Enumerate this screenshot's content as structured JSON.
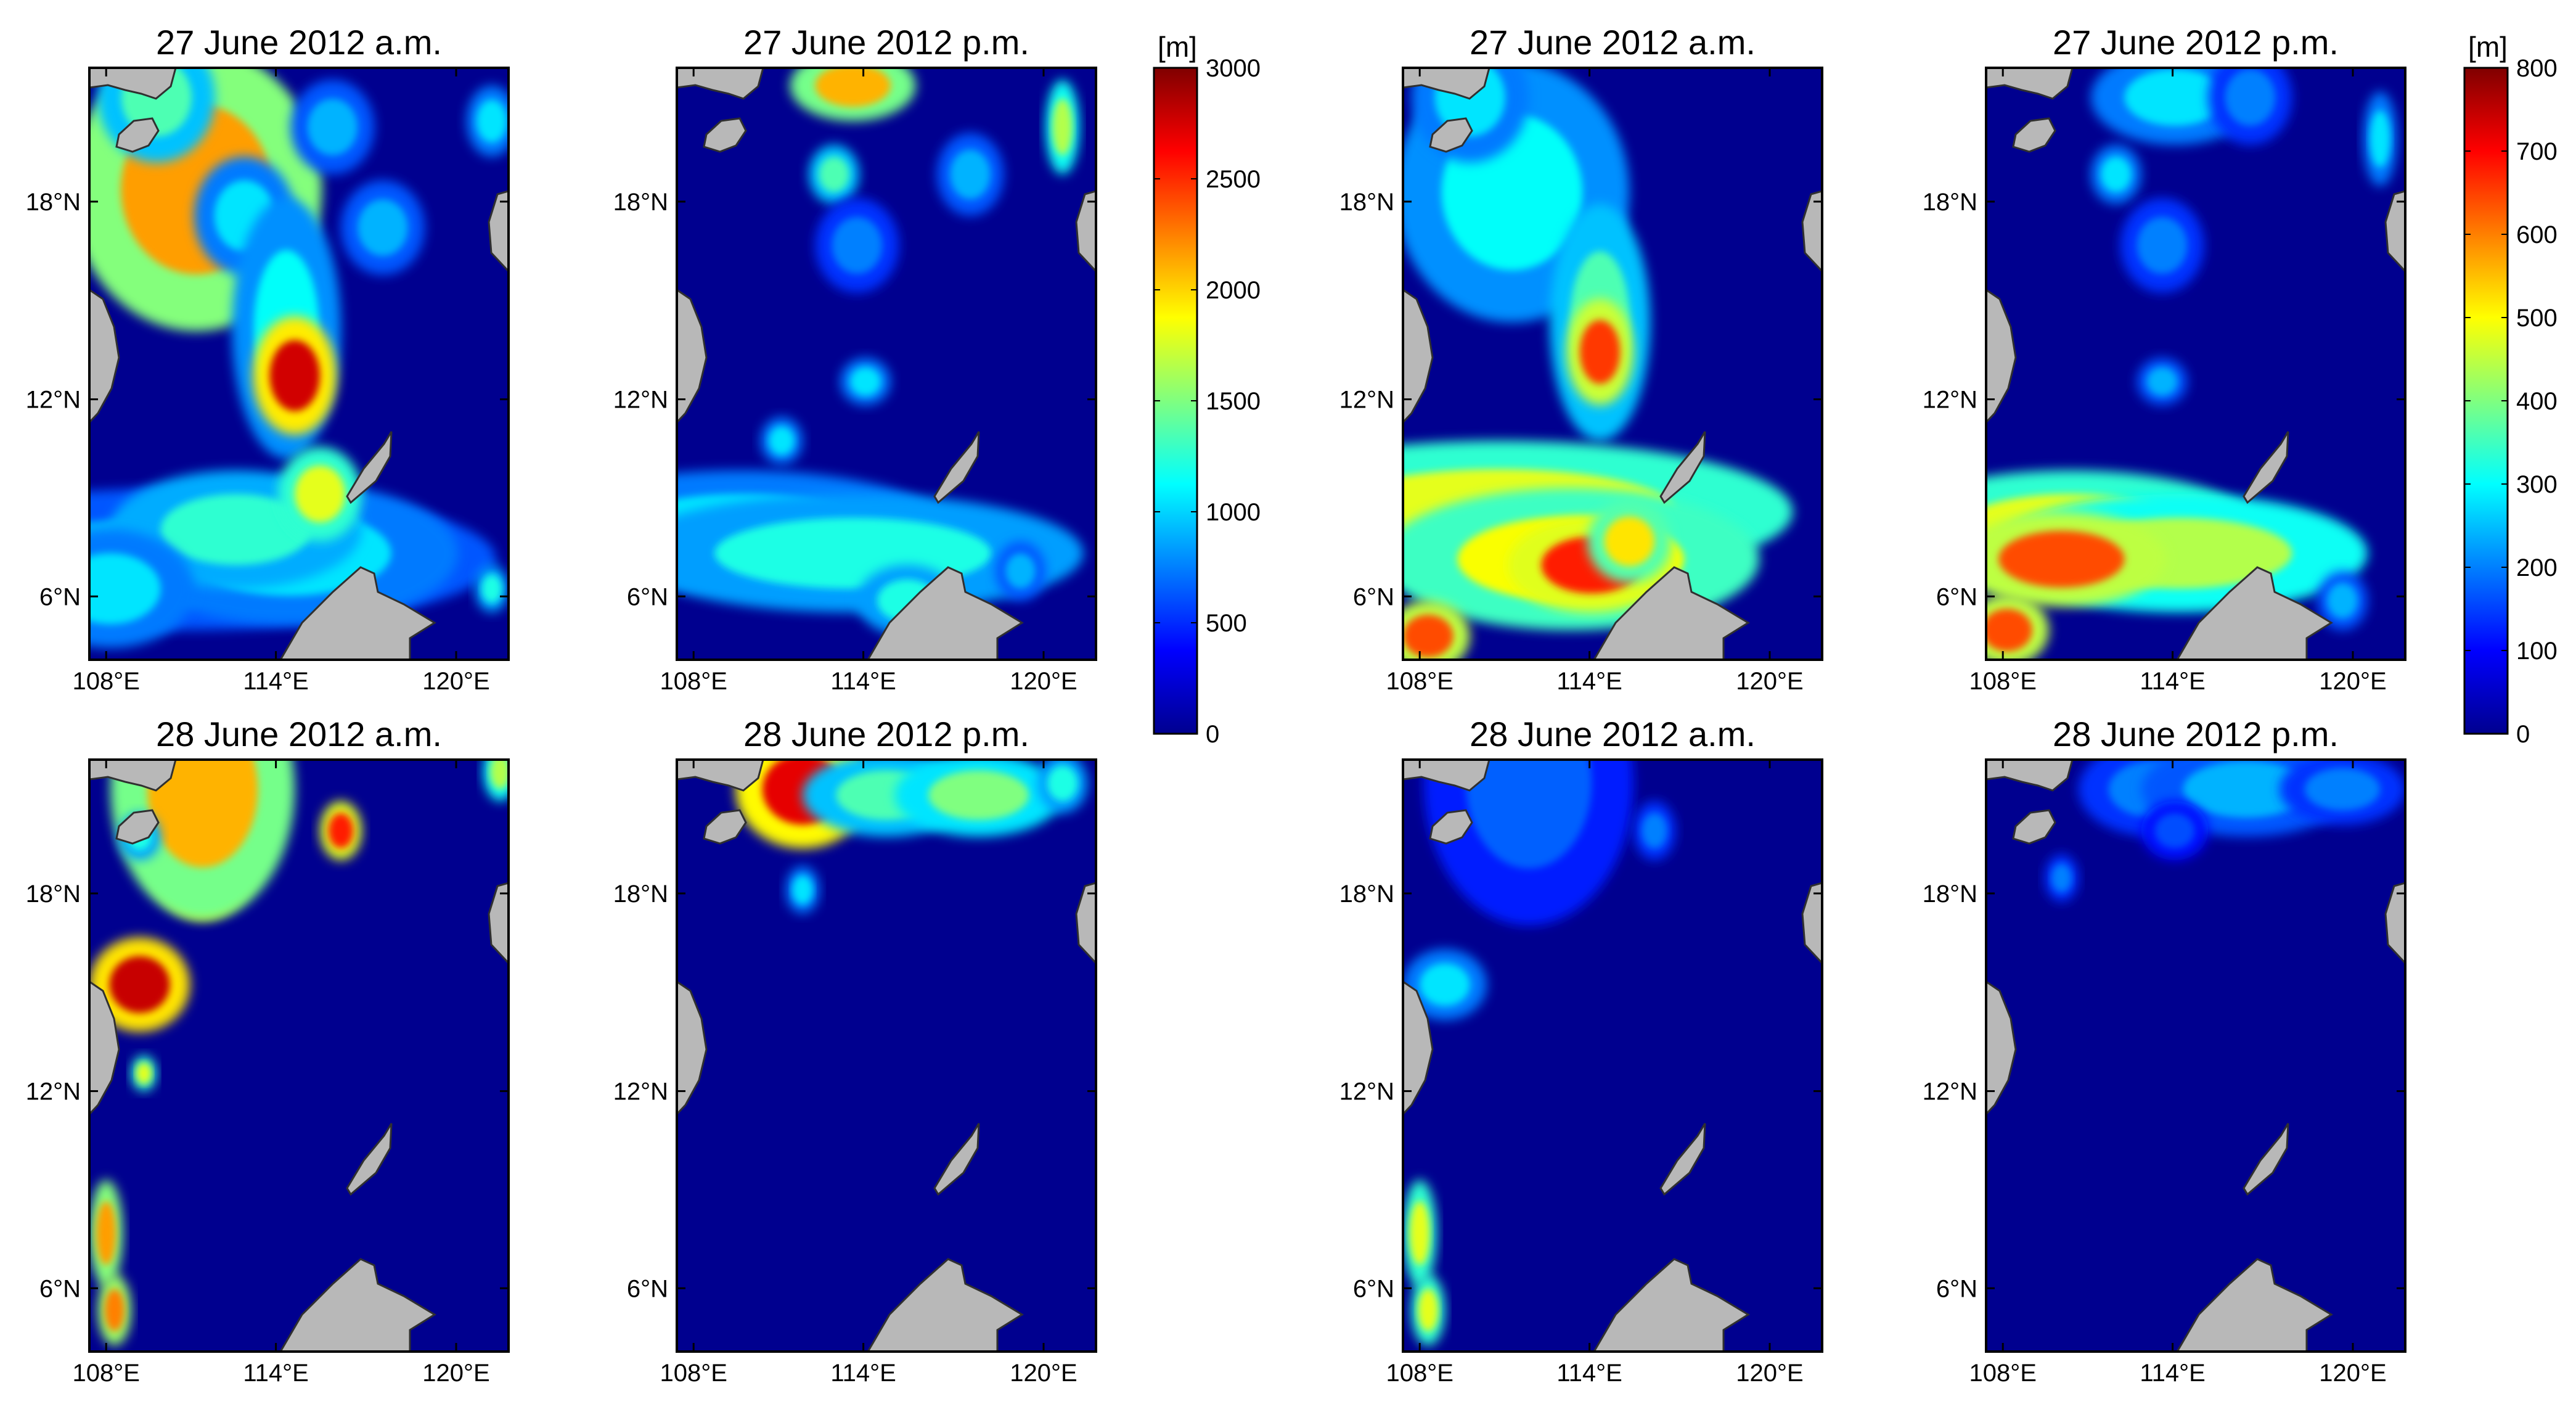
{
  "figure": {
    "panels": [
      {
        "title": "27 June 2012 a.m.",
        "scale": "depth",
        "features": [
          [
            0.255,
            0.205,
            30,
            24,
            0.72
          ],
          [
            0.16,
            0.05,
            14,
            11,
            0.45
          ],
          [
            0.37,
            0.25,
            12,
            10,
            0.35
          ],
          [
            0.58,
            0.1,
            10,
            8,
            0.3
          ],
          [
            0.7,
            0.27,
            10,
            8,
            0.3
          ],
          [
            0.96,
            0.09,
            6,
            6,
            0.35
          ],
          [
            0.47,
            0.44,
            13,
            22,
            0.38
          ],
          [
            0.49,
            0.52,
            10,
            10,
            0.92
          ],
          [
            0.22,
            0.83,
            75,
            12,
            0.3
          ],
          [
            0.48,
            0.82,
            40,
            12,
            0.35
          ],
          [
            0.35,
            0.78,
            30,
            10,
            0.42
          ],
          [
            0.55,
            0.72,
            10,
            8,
            0.6
          ],
          [
            0.05,
            0.88,
            20,
            10,
            0.35
          ],
          [
            0.96,
            0.88,
            4,
            4,
            0.4
          ]
        ]
      },
      {
        "title": "27 June 2012 p.m.",
        "scale": "depth",
        "features": [
          [
            0.42,
            0.03,
            15,
            6,
            0.7
          ],
          [
            0.92,
            0.1,
            4,
            8,
            0.55
          ],
          [
            0.375,
            0.18,
            6,
            5,
            0.45
          ],
          [
            0.7,
            0.18,
            8,
            7,
            0.3
          ],
          [
            0.43,
            0.3,
            10,
            8,
            0.25
          ],
          [
            0.45,
            0.53,
            6,
            4,
            0.35
          ],
          [
            0.25,
            0.63,
            5,
            4,
            0.35
          ],
          [
            0.15,
            0.78,
            50,
            10,
            0.35
          ],
          [
            0.42,
            0.82,
            55,
            10,
            0.4
          ],
          [
            0.55,
            0.9,
            12,
            6,
            0.4
          ],
          [
            0.82,
            0.85,
            6,
            5,
            0.3
          ]
        ]
      },
      {
        "title": "27 June 2012 a.m.",
        "scale": "clim",
        "features": [
          [
            0.26,
            0.21,
            28,
            22,
            0.38
          ],
          [
            0.16,
            0.05,
            14,
            11,
            0.35
          ],
          [
            0.47,
            0.43,
            12,
            20,
            0.45
          ],
          [
            0.47,
            0.48,
            8,
            9,
            0.82
          ],
          [
            0.23,
            0.75,
            70,
            12,
            0.6
          ],
          [
            0.4,
            0.83,
            45,
            12,
            0.62
          ],
          [
            0.45,
            0.84,
            20,
            8,
            0.85
          ],
          [
            0.54,
            0.8,
            10,
            7,
            0.65
          ],
          [
            0.06,
            0.96,
            10,
            6,
            0.8
          ]
        ]
      },
      {
        "title": "27 June 2012 p.m.",
        "scale": "clim",
        "features": [
          [
            0.45,
            0.05,
            20,
            8,
            0.35
          ],
          [
            0.63,
            0.05,
            10,
            8,
            0.25
          ],
          [
            0.94,
            0.12,
            4,
            8,
            0.35
          ],
          [
            0.31,
            0.18,
            6,
            5,
            0.35
          ],
          [
            0.42,
            0.3,
            10,
            8,
            0.25
          ],
          [
            0.42,
            0.53,
            6,
            4,
            0.3
          ],
          [
            0.2,
            0.78,
            45,
            10,
            0.6
          ],
          [
            0.46,
            0.82,
            45,
            10,
            0.55
          ],
          [
            0.18,
            0.83,
            25,
            8,
            0.8
          ],
          [
            0.05,
            0.95,
            10,
            6,
            0.8
          ],
          [
            0.85,
            0.9,
            6,
            5,
            0.3
          ]
        ]
      },
      {
        "title": "28 June 2012 a.m.",
        "scale": "depth",
        "features": [
          [
            0.27,
            0.09,
            16,
            18,
            0.9
          ],
          [
            0.27,
            0.05,
            22,
            22,
            0.7
          ],
          [
            0.6,
            0.12,
            5,
            5,
            0.85
          ],
          [
            0.12,
            0.13,
            5,
            4,
            0.4
          ],
          [
            0.98,
            0.02,
            4,
            5,
            0.55
          ],
          [
            0.12,
            0.38,
            12,
            8,
            0.93
          ],
          [
            0.13,
            0.53,
            3,
            3,
            0.6
          ],
          [
            0.04,
            0.8,
            4,
            9,
            0.72
          ],
          [
            0.06,
            0.93,
            4,
            6,
            0.75
          ]
        ]
      },
      {
        "title": "28 June 2012 p.m.",
        "scale": "depth",
        "features": [
          [
            0.3,
            0.05,
            16,
            10,
            0.9
          ],
          [
            0.5,
            0.06,
            20,
            7,
            0.45
          ],
          [
            0.72,
            0.06,
            20,
            7,
            0.5
          ],
          [
            0.92,
            0.04,
            6,
            5,
            0.4
          ],
          [
            0.3,
            0.22,
            4,
            4,
            0.35
          ]
        ]
      },
      {
        "title": "28 June 2012 a.m.",
        "scale": "clim",
        "features": [
          [
            0.33,
            0.06,
            16,
            14,
            0.3
          ],
          [
            0.3,
            0.04,
            25,
            24,
            0.22
          ],
          [
            0.6,
            0.12,
            5,
            5,
            0.25
          ],
          [
            0.1,
            0.38,
            10,
            6,
            0.35
          ],
          [
            0.04,
            0.8,
            4,
            9,
            0.6
          ],
          [
            0.06,
            0.93,
            4,
            6,
            0.6
          ]
        ]
      },
      {
        "title": "28 June 2012 p.m.",
        "scale": "clim",
        "features": [
          [
            0.4,
            0.05,
            18,
            8,
            0.25
          ],
          [
            0.62,
            0.05,
            25,
            8,
            0.3
          ],
          [
            0.85,
            0.05,
            15,
            6,
            0.25
          ],
          [
            0.45,
            0.12,
            8,
            5,
            0.2
          ],
          [
            0.18,
            0.2,
            4,
            4,
            0.25
          ]
        ]
      }
    ],
    "lon_ticks": [
      "108°E",
      "114°E",
      "120°E"
    ],
    "lat_ticks": [
      "18°N",
      "12°N",
      "6°N"
    ],
    "colorbars": [
      {
        "unit": "[m]",
        "ticks": [
          "3000",
          "2500",
          "2000",
          "1500",
          "1000",
          "500",
          "0"
        ]
      },
      {
        "unit": "[m]",
        "ticks": [
          "800",
          "700",
          "600",
          "500",
          "400",
          "300",
          "200",
          "100",
          "0"
        ]
      }
    ],
    "colors": {
      "ocean": "#00008f",
      "land": "#b8b8b8",
      "coast": "#303030",
      "frame": "#000000"
    }
  }
}
